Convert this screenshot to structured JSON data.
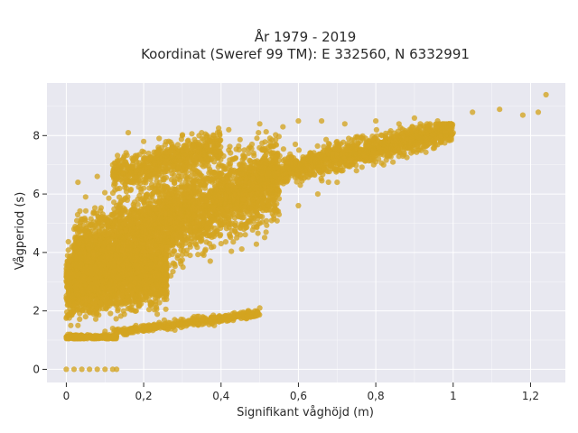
{
  "chart_data": {
    "type": "scatter",
    "title_lines": [
      "År 1979 - 2019",
      "Koordinat (Sweref 99 TM): E 332560, N 6332991"
    ],
    "xlabel": "Signifikant våghöjd (m)",
    "ylabel": "Vågperiod (s)",
    "xlim": [
      -0.05,
      1.29
    ],
    "ylim": [
      -0.45,
      9.8
    ],
    "x_ticks": [
      0,
      0.2,
      0.4,
      0.6,
      0.8,
      1,
      1.2
    ],
    "x_tick_labels": [
      "0",
      "0,2",
      "0,4",
      "0,6",
      "0,8",
      "1",
      "1,2"
    ],
    "y_ticks": [
      0,
      2,
      4,
      6,
      8
    ],
    "y_tick_labels": [
      "0",
      "2",
      "4",
      "6",
      "8"
    ],
    "grid": true,
    "colors": {
      "points": "#d4a420",
      "plot_bg": "#e8e8f0",
      "grid": "#ffffff"
    },
    "points": [
      [
        0.0,
        0.0
      ],
      [
        0.02,
        0.0
      ],
      [
        0.04,
        0.0
      ],
      [
        0.06,
        0.0
      ],
      [
        0.08,
        0.0
      ],
      [
        0.1,
        0.0
      ],
      [
        0.12,
        0.0
      ],
      [
        0.13,
        0.0
      ],
      [
        0.01,
        1.2
      ],
      [
        0.03,
        1.5
      ],
      [
        0.05,
        1.8
      ],
      [
        0.08,
        2.1
      ],
      [
        0.1,
        1.3
      ],
      [
        0.12,
        1.4
      ],
      [
        0.15,
        1.4
      ],
      [
        0.18,
        1.5
      ],
      [
        0.2,
        1.5
      ],
      [
        0.24,
        1.6
      ],
      [
        0.28,
        1.7
      ],
      [
        0.33,
        1.8
      ],
      [
        0.38,
        1.85
      ],
      [
        0.43,
        1.9
      ],
      [
        0.47,
        2.0
      ],
      [
        0.5,
        2.1
      ],
      [
        0.01,
        3.3
      ],
      [
        0.02,
        4.8
      ],
      [
        0.03,
        6.4
      ],
      [
        0.05,
        5.9
      ],
      [
        0.08,
        6.6
      ],
      [
        0.12,
        7.0
      ],
      [
        0.15,
        7.3
      ],
      [
        0.16,
        8.1
      ],
      [
        0.2,
        7.8
      ],
      [
        0.24,
        7.9
      ],
      [
        0.3,
        8.0
      ],
      [
        0.35,
        8.1
      ],
      [
        0.42,
        8.2
      ],
      [
        0.5,
        8.4
      ],
      [
        0.56,
        8.3
      ],
      [
        0.6,
        8.5
      ],
      [
        0.66,
        8.5
      ],
      [
        0.72,
        8.4
      ],
      [
        0.8,
        8.5
      ],
      [
        0.86,
        8.4
      ],
      [
        0.9,
        8.6
      ],
      [
        0.96,
        8.5
      ],
      [
        1.05,
        8.8
      ],
      [
        1.12,
        8.9
      ],
      [
        1.18,
        8.7
      ],
      [
        1.22,
        8.8
      ],
      [
        1.24,
        9.4
      ],
      [
        1.0,
        8.1
      ],
      [
        0.95,
        8.0
      ],
      [
        0.88,
        7.9
      ],
      [
        0.82,
        7.7
      ],
      [
        0.76,
        7.5
      ],
      [
        0.7,
        7.3
      ],
      [
        0.65,
        7.0
      ],
      [
        0.6,
        6.8
      ],
      [
        0.55,
        6.5
      ],
      [
        0.5,
        6.2
      ],
      [
        0.45,
        6.0
      ],
      [
        0.4,
        5.8
      ],
      [
        0.35,
        5.4
      ],
      [
        0.3,
        5.0
      ],
      [
        0.25,
        4.7
      ],
      [
        0.2,
        4.3
      ],
      [
        0.15,
        3.9
      ],
      [
        0.1,
        3.3
      ],
      [
        0.06,
        2.8
      ],
      [
        0.4,
        4.3
      ],
      [
        0.45,
        4.6
      ],
      [
        0.5,
        5.0
      ],
      [
        0.55,
        5.3
      ],
      [
        0.6,
        5.6
      ],
      [
        0.65,
        6.0
      ],
      [
        0.7,
        6.4
      ],
      [
        0.75,
        6.8
      ],
      [
        0.8,
        7.1
      ],
      [
        0.85,
        7.5
      ],
      [
        0.2,
        6.2
      ],
      [
        0.25,
        6.5
      ],
      [
        0.3,
        6.8
      ],
      [
        0.35,
        7.0
      ],
      [
        0.28,
        3.6
      ],
      [
        0.32,
        3.9
      ],
      [
        0.36,
        4.1
      ],
      [
        0.22,
        3.0
      ],
      [
        0.18,
        2.5
      ],
      [
        0.14,
        2.3
      ],
      [
        0.27,
        3.2
      ],
      [
        0.54,
        6.6
      ],
      [
        0.58,
        7.0
      ],
      [
        0.63,
        7.4
      ],
      [
        0.68,
        7.7
      ],
      [
        0.73,
        7.9
      ],
      [
        0.09,
        4.5
      ],
      [
        0.11,
        5.2
      ],
      [
        0.13,
        5.6
      ],
      [
        0.07,
        4.0
      ],
      [
        0.04,
        3.6
      ],
      [
        0.17,
        6.4
      ],
      [
        0.42,
        7.5
      ],
      [
        0.48,
        7.7
      ]
    ],
    "dense_regions": [
      {
        "x": [
          0.0,
          0.13
        ],
        "y_band": [
          [
            0.0,
            1.1
          ],
          [
            0.13,
            1.1
          ]
        ],
        "count": 220,
        "spread": 0.08
      },
      {
        "x": [
          0.0,
          0.26
        ],
        "y_band": [
          [
            0.0,
            3.0
          ],
          [
            0.26,
            3.3
          ]
        ],
        "count": 2600,
        "spread": 1.0
      },
      {
        "x": [
          0.12,
          0.5
        ],
        "y_band": [
          [
            0.12,
            1.25
          ],
          [
            0.5,
            1.9
          ]
        ],
        "count": 420,
        "spread": 0.12
      },
      {
        "x": [
          0.02,
          0.55
        ],
        "y_band": [
          [
            0.02,
            3.8
          ],
          [
            0.55,
            6.6
          ]
        ],
        "count": 3400,
        "spread": 1.3
      },
      {
        "x": [
          0.5,
          1.0
        ],
        "y_band": [
          [
            0.5,
            6.6
          ],
          [
            1.0,
            8.2
          ]
        ],
        "count": 1300,
        "spread": 0.45
      },
      {
        "x": [
          0.12,
          0.4
        ],
        "y_band": [
          [
            0.12,
            6.6
          ],
          [
            0.4,
            7.7
          ]
        ],
        "count": 650,
        "spread": 0.5
      }
    ]
  }
}
